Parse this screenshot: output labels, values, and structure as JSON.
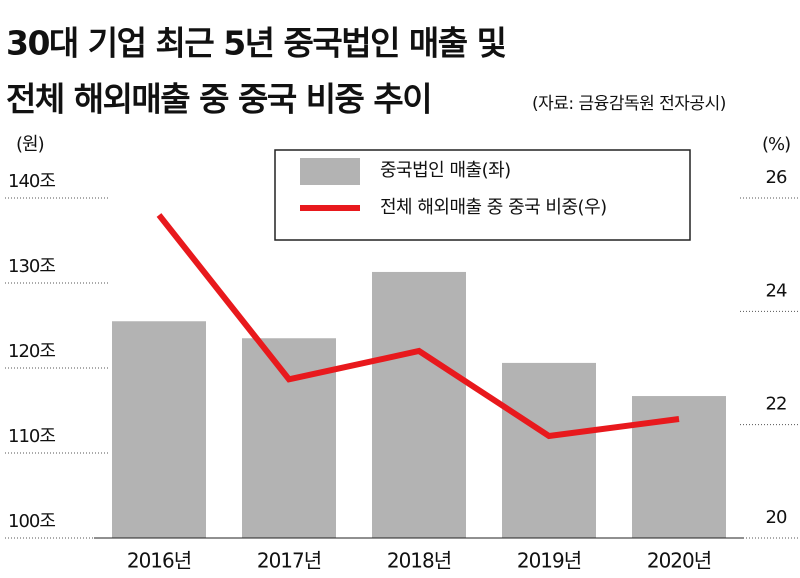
{
  "chart_data": {
    "type": "bar",
    "title": [
      "30대 기업 최근 5년 중국법인 매출 및",
      "전체 해외매출 중 중국 비중 추이"
    ],
    "source": "(자료: 금융감독원 전자공시)",
    "ylabel": "(원)",
    "y2label": "(%)",
    "categories": [
      "2016년",
      "2017년",
      "2018년",
      "2019년",
      "2020년"
    ],
    "series": [
      {
        "name": "중국법인 매출(좌)",
        "type": "bar",
        "color": "#b3b3b3",
        "values": [
          125.5,
          123.5,
          131.3,
          120.6,
          116.7
        ]
      },
      {
        "name": "전체 해외매출 중 중국 비중(우)",
        "type": "line",
        "axis": "y2",
        "color": "#e8191d",
        "values": [
          25.7,
          22.8,
          23.3,
          21.8,
          22.1
        ]
      }
    ],
    "ylim": [
      100,
      140
    ],
    "yticks": [
      {
        "value": 100,
        "label": "100조"
      },
      {
        "value": 110,
        "label": "110조"
      },
      {
        "value": 120,
        "label": "120조"
      },
      {
        "value": 130,
        "label": "130조"
      },
      {
        "value": 140,
        "label": "140조"
      }
    ],
    "y2lim": [
      20,
      26
    ],
    "y2ticks": [
      20,
      22,
      24,
      26
    ]
  }
}
